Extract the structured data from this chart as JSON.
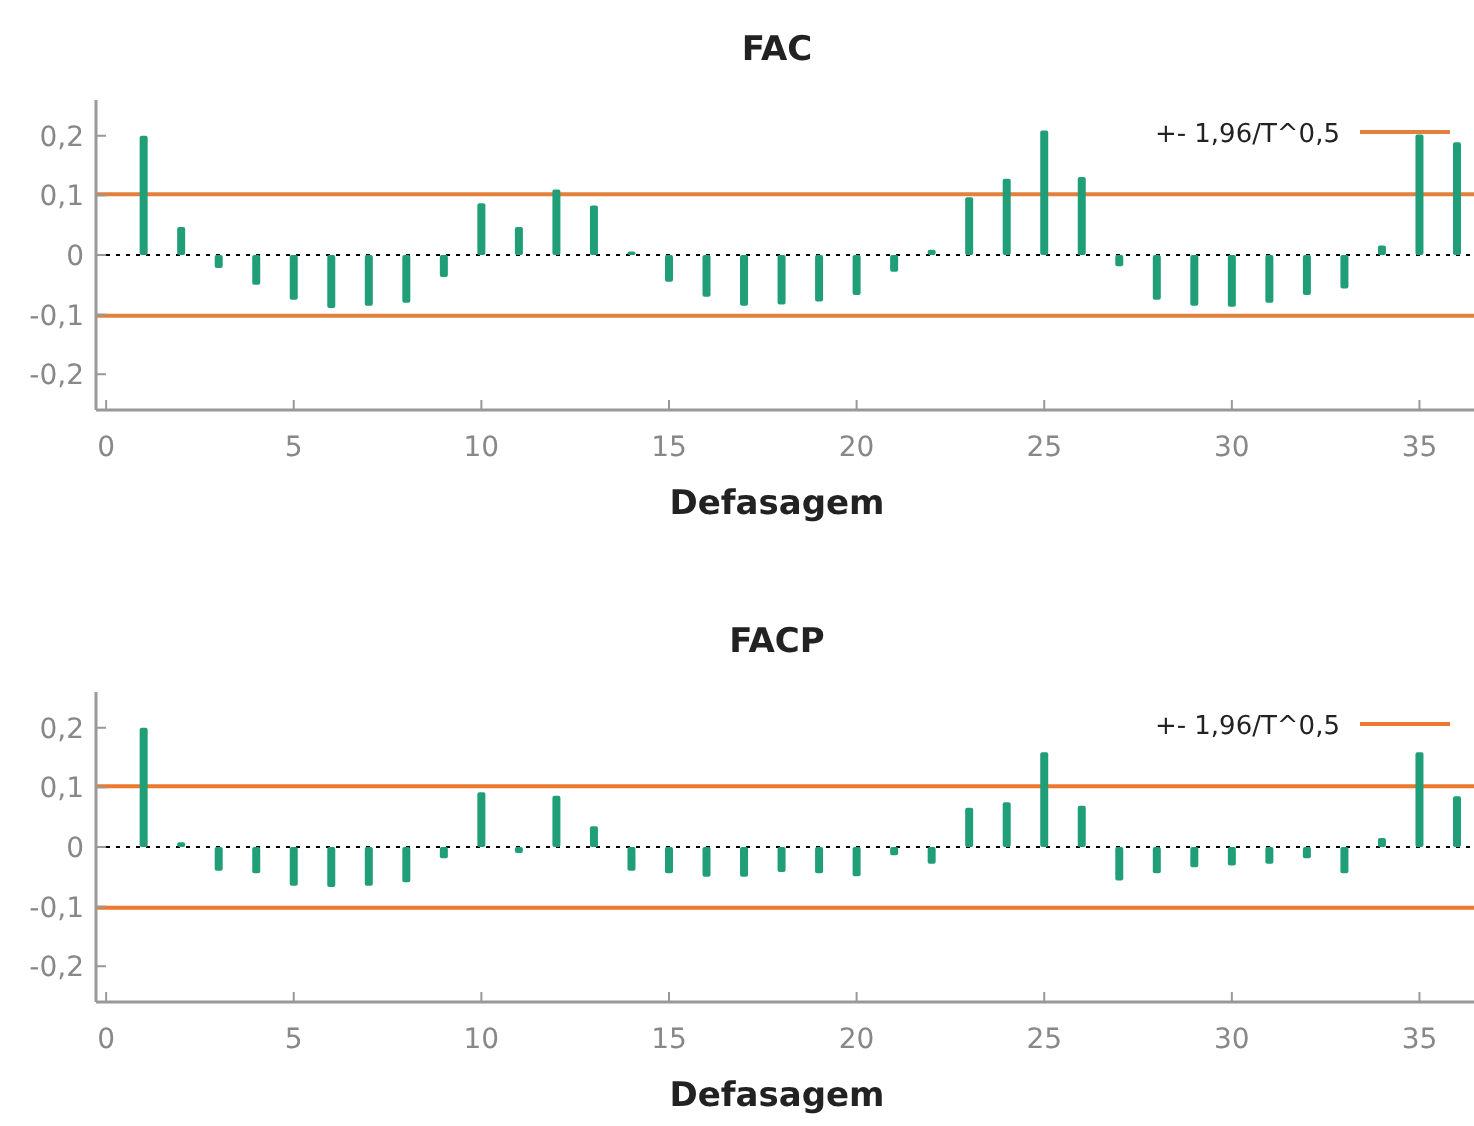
{
  "chart_data": [
    {
      "type": "bar",
      "title": "FAC",
      "xlabel": "Defasagem",
      "x": [
        1,
        2,
        3,
        4,
        5,
        6,
        7,
        8,
        9,
        10,
        11,
        12,
        13,
        14,
        15,
        16,
        17,
        18,
        19,
        20,
        21,
        22,
        23,
        24,
        25,
        26,
        27,
        28,
        29,
        30,
        31,
        32,
        33,
        34,
        35,
        36
      ],
      "series": [
        {
          "color": "#1f9e77",
          "values": [
            0.2,
            0.047,
            -0.022,
            -0.05,
            -0.075,
            -0.089,
            -0.085,
            -0.08,
            -0.037,
            0.087,
            0.047,
            0.11,
            0.083,
            0.006,
            -0.045,
            -0.07,
            -0.085,
            -0.083,
            -0.078,
            -0.067,
            -0.028,
            0.009,
            0.097,
            0.128,
            0.209,
            0.131,
            -0.019,
            -0.075,
            -0.085,
            -0.087,
            -0.08,
            -0.067,
            -0.056,
            0.016,
            0.202,
            0.189
          ]
        }
      ],
      "xlim": [
        -0.27,
        36.4
      ],
      "xticks": [
        0,
        5,
        10,
        15,
        20,
        25,
        30,
        35
      ],
      "ylim": [
        -0.26,
        0.26
      ],
      "yticks": [
        {
          "value": -0.2,
          "label": "-0,2"
        },
        {
          "value": -0.1,
          "label": "-0,1"
        },
        0,
        {
          "value": 0.1,
          "label": "0,1"
        },
        {
          "value": 0.2,
          "label": "0,2"
        }
      ],
      "ref_lines": [
        {
          "axis": "y",
          "value": 0,
          "color": "#000000",
          "line_style": "dotted"
        },
        {
          "axis": "y",
          "value": 0.102,
          "label": "+- 1,96/T^0,5",
          "color": "#e2813d"
        },
        {
          "axis": "y",
          "value": -0.102,
          "color": "#e2813d"
        }
      ],
      "legend": "top right",
      "grid": false
    },
    {
      "type": "bar",
      "title": "FACP",
      "xlabel": "Defasagem",
      "x": [
        1,
        2,
        3,
        4,
        5,
        6,
        7,
        8,
        9,
        10,
        11,
        12,
        13,
        14,
        15,
        16,
        17,
        18,
        19,
        20,
        21,
        22,
        23,
        24,
        25,
        26,
        27,
        28,
        29,
        30,
        31,
        32,
        33,
        34,
        35,
        36
      ],
      "series": [
        {
          "color": "#1f9e77",
          "values": [
            0.2,
            0.008,
            -0.04,
            -0.044,
            -0.065,
            -0.067,
            -0.065,
            -0.059,
            -0.019,
            0.092,
            -0.01,
            0.086,
            0.035,
            -0.04,
            -0.044,
            -0.05,
            -0.05,
            -0.042,
            -0.044,
            -0.049,
            -0.014,
            -0.028,
            0.066,
            0.075,
            0.159,
            0.069,
            -0.056,
            -0.044,
            -0.034,
            -0.031,
            -0.028,
            -0.019,
            -0.044,
            0.015,
            0.159,
            0.085
          ]
        }
      ],
      "xlim": [
        -0.27,
        36.4
      ],
      "xticks": [
        0,
        5,
        10,
        15,
        20,
        25,
        30,
        35
      ],
      "ylim": [
        -0.26,
        0.26
      ],
      "yticks": [
        {
          "value": -0.2,
          "label": "-0,2"
        },
        {
          "value": -0.1,
          "label": "-0,1"
        },
        0,
        {
          "value": 0.1,
          "label": "0,1"
        },
        {
          "value": 0.2,
          "label": "0,2"
        }
      ],
      "ref_lines": [
        {
          "axis": "y",
          "value": 0,
          "color": "#000000",
          "line_style": "dotted"
        },
        {
          "axis": "y",
          "value": 0.102,
          "label": "+- 1,96/T^0,5",
          "color": "#ec7a2e"
        },
        {
          "axis": "y",
          "value": -0.102,
          "color": "#ec7a2e"
        }
      ],
      "legend": "top right",
      "grid": false
    }
  ]
}
